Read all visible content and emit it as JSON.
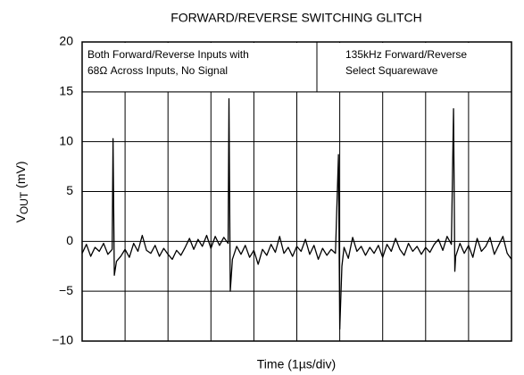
{
  "chart_data": {
    "type": "line",
    "title": "FORWARD/REVERSE SWITCHING GLITCH",
    "xlabel": "Time (1µs/div)",
    "ylabel": "V",
    "ylabel_sub": "OUT",
    "ylabel_rest": "(mV)",
    "annotations": [
      [
        "Both Forward/Reverse Inputs with",
        "68Ω Across Inputs, No Signal"
      ],
      [
        "135kHz Forward/Reverse",
        "Select Squarewave"
      ]
    ],
    "xlim": [
      0,
      10
    ],
    "xticks": [
      0,
      1,
      2,
      3,
      4,
      5,
      6,
      7,
      8,
      9,
      10
    ],
    "ylim": [
      -10,
      20
    ],
    "yticks": [
      {
        "value": -10,
        "label": "−10"
      },
      {
        "value": -5,
        "label": "−5"
      },
      0,
      5,
      10,
      15,
      20
    ],
    "grid": true,
    "series": [
      {
        "color": "#000000",
        "x": [
          0.0,
          0.1,
          0.2,
          0.3,
          0.4,
          0.5,
          0.6,
          0.7,
          0.72,
          0.75,
          0.8,
          0.9,
          1.0,
          1.1,
          1.2,
          1.3,
          1.4,
          1.5,
          1.6,
          1.7,
          1.8,
          1.9,
          2.0,
          2.1,
          2.2,
          2.3,
          2.4,
          2.5,
          2.6,
          2.7,
          2.8,
          2.9,
          3.0,
          3.1,
          3.2,
          3.3,
          3.4,
          3.42,
          3.45,
          3.5,
          3.6,
          3.7,
          3.8,
          3.9,
          4.0,
          4.1,
          4.2,
          4.3,
          4.4,
          4.5,
          4.6,
          4.7,
          4.8,
          4.9,
          5.0,
          5.1,
          5.2,
          5.3,
          5.4,
          5.5,
          5.6,
          5.7,
          5.8,
          5.9,
          5.97,
          6.0,
          6.05,
          6.1,
          6.2,
          6.3,
          6.4,
          6.5,
          6.6,
          6.7,
          6.8,
          6.9,
          7.0,
          7.1,
          7.2,
          7.3,
          7.4,
          7.5,
          7.6,
          7.7,
          7.8,
          7.9,
          8.0,
          8.1,
          8.2,
          8.3,
          8.4,
          8.5,
          8.6,
          8.65,
          8.68,
          8.7,
          8.8,
          8.9,
          9.0,
          9.1,
          9.2,
          9.3,
          9.4,
          9.5,
          9.6,
          9.7,
          9.8,
          9.9,
          10.0
        ],
        "values": [
          -1.2,
          -0.3,
          -1.5,
          -0.6,
          -1.0,
          -0.2,
          -1.3,
          -0.8,
          10.3,
          -3.4,
          -2.0,
          -1.5,
          -0.8,
          -1.6,
          -0.2,
          -1.0,
          0.6,
          -0.9,
          -1.2,
          -0.4,
          -1.5,
          -0.7,
          -1.3,
          -1.8,
          -0.9,
          -1.4,
          -0.6,
          0.3,
          -0.8,
          0.2,
          -0.5,
          0.6,
          -0.7,
          0.5,
          -0.4,
          0.4,
          -0.2,
          14.3,
          -5.0,
          -1.8,
          -0.5,
          -1.3,
          -0.4,
          -1.6,
          -0.9,
          -2.3,
          -0.8,
          -1.4,
          -0.3,
          -1.1,
          0.5,
          -1.2,
          -0.6,
          -1.5,
          -0.5,
          -1.0,
          0.2,
          -1.3,
          -0.4,
          -1.8,
          -0.7,
          -1.4,
          -0.8,
          -1.2,
          8.7,
          -8.8,
          -2.5,
          -0.6,
          -1.7,
          0.4,
          -1.0,
          -0.5,
          -1.4,
          -0.6,
          -1.2,
          -0.4,
          -1.6,
          -0.3,
          -1.0,
          0.3,
          -0.8,
          -1.4,
          -0.2,
          -1.0,
          -0.5,
          -1.3,
          -0.6,
          -1.1,
          -0.3,
          0.2,
          -0.9,
          0.5,
          -0.3,
          13.3,
          -3.0,
          -1.5,
          -0.2,
          -1.2,
          -0.4,
          -1.6,
          0.3,
          -1.0,
          -0.5,
          0.4,
          -1.3,
          -0.4,
          0.5,
          -1.2,
          -1.8
        ]
      }
    ]
  }
}
